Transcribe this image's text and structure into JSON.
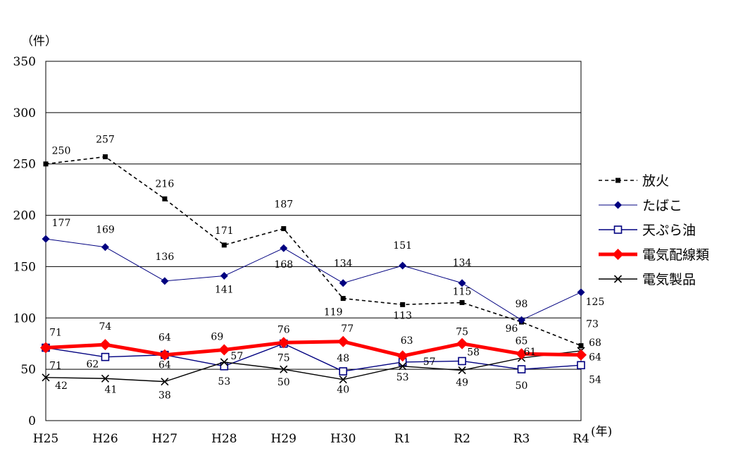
{
  "chart_data": {
    "type": "line",
    "y_unit": "（件）",
    "x_unit": "(年)",
    "categories": [
      "H25",
      "H26",
      "H27",
      "H28",
      "H29",
      "H30",
      "R1",
      "R2",
      "R3",
      "R4"
    ],
    "ylim": [
      0,
      350
    ],
    "y_ticks": [
      "0",
      "50",
      "100",
      "150",
      "200",
      "250",
      "300",
      "350"
    ],
    "grid": true,
    "legend_position": "right",
    "series": [
      {
        "key": "arson",
        "name": "放火",
        "values": [
          250,
          257,
          216,
          171,
          187,
          119,
          113,
          115,
          96,
          73
        ],
        "labels": [
          "250",
          "257",
          "216",
          "171",
          "187",
          "119",
          "113",
          "115",
          "96",
          "73"
        ],
        "color": "#000000",
        "marker": "square"
      },
      {
        "key": "tobacco",
        "name": "たばこ",
        "values": [
          177,
          169,
          136,
          141,
          168,
          134,
          151,
          134,
          98,
          125
        ],
        "labels": [
          "177",
          "169",
          "136",
          "141",
          "168",
          "134",
          "151",
          "134",
          "98",
          "125"
        ],
        "color": "#000080",
        "marker": "diamond"
      },
      {
        "key": "tempura",
        "name": "天ぷら油",
        "values": [
          71,
          62,
          64,
          53,
          75,
          48,
          57,
          58,
          50,
          54
        ],
        "labels": [
          "71",
          "62",
          "64",
          "53",
          "75",
          "48",
          "57",
          "58",
          "50",
          "54"
        ],
        "color": "#000080",
        "marker": "open-square"
      },
      {
        "key": "wiring",
        "name": "電気配線類",
        "values": [
          71,
          74,
          64,
          69,
          76,
          77,
          63,
          75,
          65,
          64
        ],
        "labels": [
          "71",
          "74",
          "64",
          "69",
          "76",
          "77",
          "63",
          "75",
          "65",
          "64"
        ],
        "color": "#ff0000",
        "marker": "big-diamond"
      },
      {
        "key": "appliance",
        "name": "電気製品",
        "values": [
          42,
          41,
          38,
          57,
          50,
          40,
          53,
          49,
          61,
          68
        ],
        "labels": [
          "42",
          "41",
          "38",
          "57",
          "50",
          "40",
          "53",
          "49",
          "61",
          "68"
        ],
        "color": "#000000",
        "marker": "x"
      }
    ]
  }
}
